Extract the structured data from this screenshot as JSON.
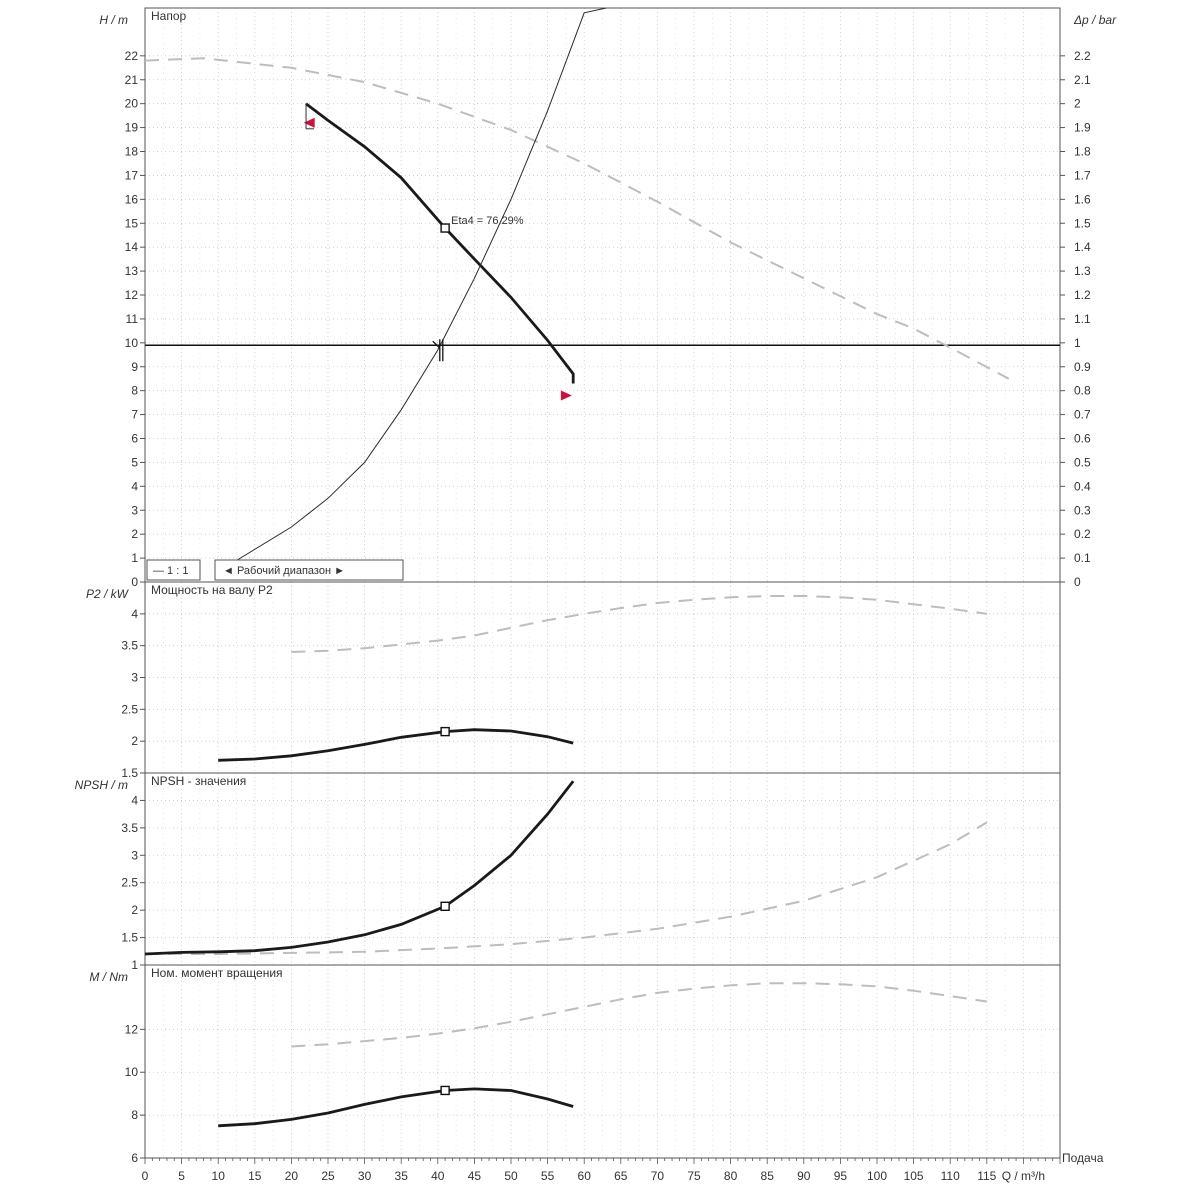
{
  "chart_data": {
    "type": "line",
    "xaxis": {
      "label": "Q / m³/h",
      "label_right": "Подача",
      "range": [
        0,
        125
      ],
      "ticks": [
        0,
        5,
        10,
        15,
        20,
        25,
        30,
        35,
        40,
        45,
        50,
        55,
        60,
        65,
        70,
        75,
        80,
        85,
        90,
        95,
        100,
        105,
        110,
        115,
        120
      ],
      "tick_labels": [
        "0",
        "5",
        "10",
        "15",
        "20",
        "25",
        "30",
        "35",
        "40",
        "45",
        "50",
        "55",
        "60",
        "65",
        "70",
        "75",
        "80",
        "85",
        "90",
        "95",
        "100",
        "105",
        "110",
        "115",
        "Q / m³/h"
      ]
    },
    "panels": [
      {
        "id": "head",
        "title": "Напор",
        "ylabel": "H / m",
        "ylabel_right": "Δp / bar",
        "ylim": [
          0,
          24
        ],
        "yticks": [
          0,
          1,
          2,
          3,
          4,
          5,
          6,
          7,
          8,
          9,
          10,
          11,
          12,
          13,
          14,
          15,
          16,
          17,
          18,
          19,
          20,
          21,
          22
        ],
        "yticks_right": [
          "0",
          "0.1",
          "0.2",
          "0.3",
          "0.4",
          "0.5",
          "0.6",
          "0.7",
          "0.8",
          "0.9",
          "1",
          "1.1",
          "1.2",
          "1.3",
          "1.4",
          "1.5",
          "1.6",
          "1.7",
          "1.8",
          "1.9",
          "2",
          "2.1",
          "2.2"
        ],
        "duty_line": 9.9,
        "series": [
          {
            "style": "dashed-light",
            "x": [
              0,
              8,
              20,
              30,
              40,
              50,
              60,
              70,
              80,
              90,
              100,
              105,
              110,
              118
            ],
            "y": [
              21.8,
              21.9,
              21.5,
              20.9,
              20.0,
              18.9,
              17.5,
              15.9,
              14.2,
              12.7,
              11.2,
              10.6,
              9.8,
              8.5
            ]
          },
          {
            "style": "solid-bold",
            "x": [
              22,
              25,
              30,
              35,
              41,
              45,
              50,
              55,
              58.5,
              58.5
            ],
            "y": [
              20.0,
              19.3,
              18.2,
              16.9,
              14.8,
              13.5,
              11.9,
              10.1,
              8.7,
              8.3
            ]
          },
          {
            "style": "solid-thin",
            "x": [
              12.5,
              20,
              25,
              30,
              35,
              40,
              45,
              50,
              55,
              60,
              63
            ],
            "y": [
              0.9,
              2.3,
              3.5,
              5.0,
              7.2,
              9.7,
              12.7,
              16.0,
              19.7,
              23.8,
              24
            ]
          }
        ],
        "op_point": {
          "x": 41,
          "y": 14.8,
          "label": "Eta4 = 76.29%"
        },
        "markers": [
          {
            "x": 22.5,
            "y": 19.2,
            "dir": "left"
          },
          {
            "x": 57.5,
            "y": 7.8,
            "dir": "right"
          }
        ],
        "duty_marker": {
          "x": 40,
          "y": 9.9
        },
        "legend": {
          "items": [
            "— 1 : 1",
            "◄ Рабочий диапазон ►"
          ]
        }
      },
      {
        "id": "power",
        "title": "Мощность на валу P2",
        "ylabel": "P2 / kW",
        "ylim": [
          1.5,
          4.5
        ],
        "yticks": [
          1.5,
          2,
          2.5,
          3,
          3.5,
          4
        ],
        "series": [
          {
            "style": "dashed-light",
            "x": [
              20,
              25,
              30,
              35,
              40,
              45,
              50,
              55,
              60,
              65,
              70,
              75,
              80,
              85,
              90,
              95,
              100,
              105,
              110,
              115
            ],
            "y": [
              3.4,
              3.42,
              3.46,
              3.52,
              3.58,
              3.66,
              3.78,
              3.9,
              4.0,
              4.09,
              4.17,
              4.22,
              4.26,
              4.28,
              4.28,
              4.26,
              4.22,
              4.15,
              4.08,
              4.0
            ]
          },
          {
            "style": "solid-bold",
            "x": [
              10,
              15,
              20,
              25,
              30,
              35,
              41,
              45,
              50,
              55,
              58.5
            ],
            "y": [
              1.7,
              1.72,
              1.77,
              1.85,
              1.95,
              2.06,
              2.15,
              2.18,
              2.16,
              2.07,
              1.97
            ]
          }
        ],
        "op_point": {
          "x": 41,
          "y": 2.15
        }
      },
      {
        "id": "npsh",
        "title": "NPSH - значения",
        "ylabel": "NPSH / m",
        "ylim": [
          1,
          4.5
        ],
        "yticks": [
          1,
          1.5,
          2,
          2.5,
          3,
          3.5,
          4
        ],
        "series": [
          {
            "style": "dashed-light",
            "x": [
              0,
              10,
              20,
              30,
              40,
              50,
              60,
              70,
              80,
              90,
              100,
              110,
              115
            ],
            "y": [
              1.2,
              1.2,
              1.22,
              1.24,
              1.3,
              1.38,
              1.5,
              1.66,
              1.88,
              2.17,
              2.6,
              3.2,
              3.6
            ]
          },
          {
            "style": "solid-bold",
            "x": [
              0,
              5,
              10,
              15,
              20,
              25,
              30,
              35,
              41,
              45,
              50,
              55,
              58.5
            ],
            "y": [
              1.2,
              1.23,
              1.24,
              1.26,
              1.32,
              1.42,
              1.55,
              1.74,
              2.07,
              2.45,
              3.0,
              3.75,
              4.35
            ]
          }
        ],
        "op_point": {
          "x": 41,
          "y": 2.07
        }
      },
      {
        "id": "torque",
        "title": "Ном. момент вращения",
        "ylabel": "M / Nm",
        "ylim": [
          6,
          15
        ],
        "yticks": [
          6,
          8,
          10,
          12
        ],
        "series": [
          {
            "style": "dashed-light",
            "x": [
              20,
              25,
              30,
              35,
              40,
              45,
              50,
              55,
              60,
              65,
              70,
              75,
              80,
              85,
              90,
              95,
              100,
              105,
              110,
              115
            ],
            "y": [
              11.2,
              11.3,
              11.45,
              11.6,
              11.8,
              12.05,
              12.35,
              12.7,
              13.05,
              13.4,
              13.7,
              13.9,
              14.05,
              14.15,
              14.15,
              14.1,
              14.0,
              13.8,
              13.55,
              13.3
            ]
          },
          {
            "style": "solid-bold",
            "x": [
              10,
              15,
              20,
              25,
              30,
              35,
              41,
              45,
              50,
              55,
              58.5
            ],
            "y": [
              7.5,
              7.6,
              7.8,
              8.1,
              8.5,
              8.85,
              9.15,
              9.22,
              9.15,
              8.75,
              8.4
            ]
          }
        ],
        "op_point": {
          "x": 41,
          "y": 9.15
        }
      }
    ]
  }
}
